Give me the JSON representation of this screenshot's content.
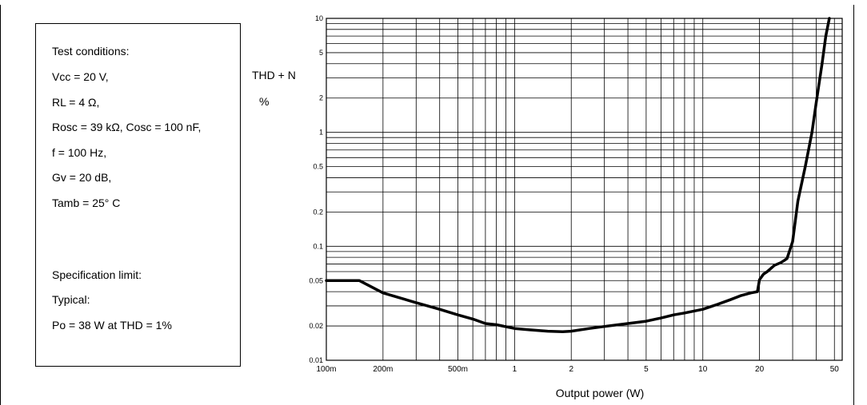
{
  "heading": "",
  "conditions": {
    "lines": [
      "Test conditions:",
      "Vcc = 20 V,",
      "RL = 4 Ω,",
      "Rosc = 39 kΩ, Cosc = 100 nF,",
      "f = 100 Hz,",
      "Gv = 20 dB,",
      "Tamb = 25° C",
      "",
      "",
      "Specification limit:",
      "Typical:",
      "Po = 38 W at THD = 1%"
    ]
  },
  "chart_data": {
    "type": "line",
    "title": "",
    "xlabel": "Output power (W)",
    "ylabel": [
      "THD + N",
      "%"
    ],
    "xscale": "log",
    "yscale": "log",
    "xlim": [
      0.1,
      55
    ],
    "ylim": [
      0.01,
      10
    ],
    "grid": true,
    "x_tick_values": [
      0.1,
      0.2,
      0.5,
      1,
      2,
      5,
      10,
      20,
      50
    ],
    "x_tick_labels": [
      "100m",
      "200m",
      "500m",
      "1",
      "2",
      "5",
      "10",
      "20",
      "50"
    ],
    "y_tick_values": [
      0.01,
      0.02,
      0.05,
      0.1,
      0.2,
      0.5,
      1,
      2,
      5,
      10
    ],
    "y_tick_labels": [
      "0.01",
      "0.02",
      "0.05",
      "0.1",
      "0.2",
      "0.5",
      "1",
      "2",
      "5",
      "10"
    ],
    "series": [
      {
        "x": [
          0.1,
          0.15,
          0.2,
          0.3,
          0.4,
          0.5,
          0.6,
          0.7,
          0.8,
          1.0,
          1.2,
          1.5,
          1.8,
          2.0,
          2.5,
          3.0,
          4.0,
          5.0,
          6.0,
          7.0,
          8.0,
          10.0,
          12.0,
          14.0,
          16.0,
          18.0,
          19.5,
          20.0,
          21.0,
          22.0,
          24.0,
          26.0,
          27.0,
          28.0,
          30.0,
          32.0,
          35.0,
          38.0,
          40.0,
          43.0,
          45.0,
          47.0
        ],
        "y": [
          0.05,
          0.05,
          0.039,
          0.032,
          0.028,
          0.025,
          0.023,
          0.021,
          0.0205,
          0.019,
          0.0185,
          0.018,
          0.0178,
          0.018,
          0.019,
          0.0198,
          0.021,
          0.022,
          0.0235,
          0.025,
          0.026,
          0.028,
          0.031,
          0.034,
          0.037,
          0.039,
          0.04,
          0.051,
          0.057,
          0.06,
          0.068,
          0.072,
          0.075,
          0.078,
          0.11,
          0.25,
          0.5,
          1.0,
          1.8,
          4.0,
          7.0,
          10.0
        ]
      }
    ]
  }
}
